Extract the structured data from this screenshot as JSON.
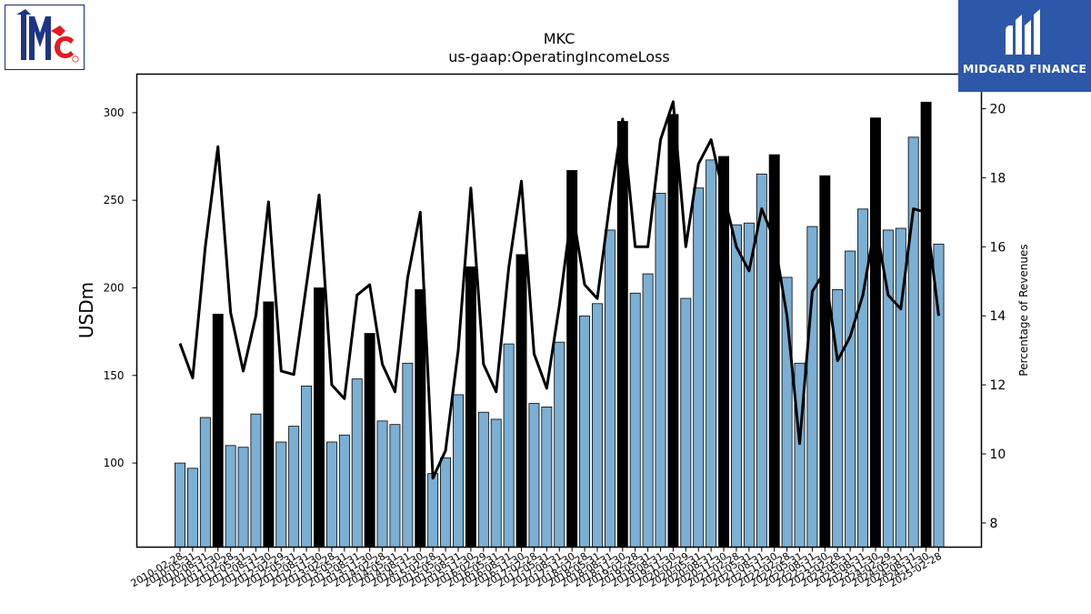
{
  "chart_data": {
    "type": "bar",
    "title": "MKC",
    "subtitle": "us-gaap:OperatingIncomeLoss",
    "ylabel": "USDm",
    "ylabel_right": "Percentage of Revenues",
    "ylim": [
      52,
      322
    ],
    "ylim_right": [
      7.3,
      21.0
    ],
    "yticks": [
      100,
      150,
      200,
      250,
      300
    ],
    "yticks_right": [
      8,
      10,
      12,
      14,
      16,
      18,
      20
    ],
    "grid": false,
    "colors": {
      "quarter_bar": "#7bafd4",
      "annual_bar": "#000000",
      "line": "#000000",
      "bar_edge": "#000000"
    },
    "categories": [
      "2010-02-28",
      "2010-05-31",
      "2010-08-31",
      "2010-11-30",
      "2011-02-28",
      "2011-05-31",
      "2011-08-31",
      "2011-11-30",
      "2012-02-29",
      "2012-05-31",
      "2012-08-31",
      "2012-11-30",
      "2013-02-28",
      "2013-05-31",
      "2013-08-31",
      "2013-11-30",
      "2014-02-28",
      "2014-05-31",
      "2014-08-31",
      "2014-11-30",
      "2015-02-28",
      "2015-05-31",
      "2015-08-31",
      "2015-11-30",
      "2016-02-29",
      "2016-05-31",
      "2016-08-31",
      "2016-11-30",
      "2017-02-28",
      "2017-05-31",
      "2017-08-31",
      "2017-11-30",
      "2018-02-28",
      "2018-05-31",
      "2018-08-31",
      "2018-11-30",
      "2019-02-28",
      "2019-05-31",
      "2019-08-31",
      "2019-11-30",
      "2020-02-29",
      "2020-05-31",
      "2020-08-31",
      "2020-11-30",
      "2021-02-28",
      "2021-05-31",
      "2021-08-31",
      "2021-11-30",
      "2022-02-28",
      "2022-05-31",
      "2022-08-31",
      "2022-11-30",
      "2023-02-28",
      "2023-05-31",
      "2023-08-31",
      "2023-11-30",
      "2024-02-29",
      "2024-05-31",
      "2024-08-31",
      "2024-11-30",
      "2025-02-28"
    ],
    "series": [
      {
        "kind": "bar",
        "values": [
          100,
          97,
          126,
          185,
          110,
          109,
          128,
          192,
          112,
          121,
          144,
          200,
          112,
          116,
          148,
          174,
          124,
          122,
          157,
          199,
          94,
          103,
          139,
          212,
          129,
          125,
          168,
          219,
          134,
          132,
          169,
          267,
          184,
          191,
          233,
          295,
          197,
          208,
          254,
          299,
          194,
          257,
          273,
          275,
          236,
          237,
          265,
          276,
          206,
          157,
          235,
          264,
          199,
          221,
          245,
          297,
          233,
          234,
          286,
          306,
          225
        ],
        "annual_flags": [
          0,
          0,
          0,
          1,
          0,
          0,
          0,
          1,
          0,
          0,
          0,
          1,
          0,
          0,
          0,
          1,
          0,
          0,
          0,
          1,
          0,
          0,
          0,
          1,
          0,
          0,
          0,
          1,
          0,
          0,
          0,
          1,
          0,
          0,
          0,
          1,
          0,
          0,
          0,
          1,
          0,
          0,
          0,
          1,
          0,
          0,
          0,
          1,
          0,
          0,
          0,
          1,
          0,
          0,
          0,
          1,
          0,
          0,
          0,
          1,
          0
        ]
      },
      {
        "kind": "line",
        "axis": "right",
        "values": [
          13.2,
          12.2,
          16.0,
          18.9,
          14.1,
          12.4,
          14.0,
          17.3,
          12.4,
          12.3,
          14.9,
          17.5,
          12.0,
          11.6,
          14.6,
          14.9,
          12.6,
          11.8,
          15.1,
          17.0,
          9.3,
          10.1,
          13.0,
          17.7,
          12.6,
          11.8,
          15.4,
          17.9,
          12.9,
          11.9,
          14.3,
          17.1,
          14.9,
          14.5,
          17.3,
          19.7,
          16.0,
          16.0,
          19.1,
          20.2,
          16.0,
          18.4,
          19.1,
          17.5,
          16.0,
          15.3,
          17.1,
          16.2,
          14.0,
          10.3,
          14.7,
          15.3,
          12.7,
          13.4,
          14.6,
          16.7,
          14.6,
          14.2,
          17.1,
          17.0,
          14.0
        ]
      }
    ]
  },
  "logos": {
    "left_brand": "McCormick",
    "right_brand_text": "MIDGARD FINANCE"
  }
}
